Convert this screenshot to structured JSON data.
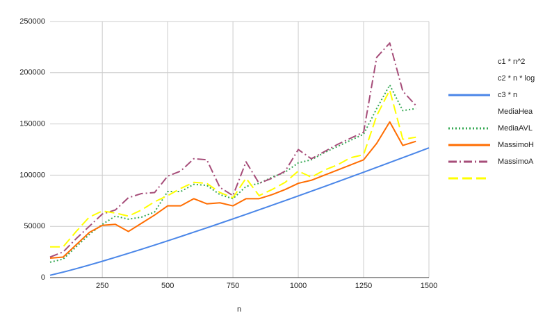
{
  "chart_data": {
    "type": "line",
    "x_label": "n",
    "x": [
      50,
      100,
      150,
      200,
      250,
      300,
      350,
      400,
      450,
      500,
      550,
      600,
      650,
      700,
      750,
      800,
      850,
      900,
      950,
      1000,
      1050,
      1100,
      1150,
      1200,
      1250,
      1300,
      1350,
      1400,
      1450,
      1500
    ],
    "xlim": [
      50,
      1500
    ],
    "xticks": [
      250,
      500,
      750,
      1000,
      1250,
      1500
    ],
    "ylim": [
      0,
      250000
    ],
    "yticks": [
      0,
      50000,
      100000,
      150000,
      200000,
      250000
    ],
    "grid": true,
    "legend": "right",
    "series": [
      {
        "name": "c1 * n^2",
        "color": "#ffffff",
        "dash": "solid",
        "values": [
          null,
          null,
          null,
          null,
          null,
          null,
          null,
          null,
          null,
          null,
          null,
          null,
          null,
          null,
          null,
          null,
          null,
          null,
          null,
          null,
          null,
          null,
          null,
          null,
          null,
          null,
          null,
          null,
          null,
          null
        ]
      },
      {
        "name": "c2 * n * log",
        "color": "#4a86e8",
        "dash": "solid",
        "values": [
          2257,
          5315,
          8675,
          12230,
          15932,
          19750,
          23663,
          27661,
          31730,
          35863,
          40055,
          44300,
          48590,
          52927,
          57305,
          61723,
          66173,
          70660,
          75180,
          79726,
          84302,
          88906,
          93536,
          98198,
          102880,
          107578,
          112309,
          117051,
          121823,
          126612
        ]
      },
      {
        "name": "c3 * n",
        "color": "#ffffff",
        "dash": "solid",
        "values": [
          null,
          null,
          null,
          null,
          null,
          null,
          null,
          null,
          null,
          null,
          null,
          null,
          null,
          null,
          null,
          null,
          null,
          null,
          null,
          null,
          null,
          null,
          null,
          null,
          null,
          null,
          null,
          null,
          null,
          null
        ]
      },
      {
        "name": "MediaHea",
        "color": "#34a853",
        "dash": "dotted",
        "values": [
          15000,
          18000,
          30000,
          42000,
          52000,
          60000,
          57000,
          59000,
          64000,
          84000,
          84000,
          91000,
          90000,
          81000,
          77000,
          89000,
          92000,
          98000,
          103000,
          112000,
          115000,
          122000,
          128000,
          134000,
          140000,
          165000,
          188000,
          163000,
          165000,
          null
        ]
      },
      {
        "name": "MediaAVL",
        "color": "#ff6d01",
        "dash": "solid",
        "values": [
          19000,
          20000,
          32000,
          44000,
          51000,
          52000,
          45000,
          53000,
          61000,
          70000,
          70000,
          77000,
          72000,
          73000,
          70000,
          77000,
          77000,
          81000,
          86000,
          92000,
          95000,
          100000,
          105000,
          110000,
          115000,
          131000,
          152000,
          129000,
          133000,
          null
        ]
      },
      {
        "name": "MassimoH",
        "color": "#a64d79",
        "dash": "dashdot",
        "values": [
          20000,
          25000,
          38000,
          50000,
          62000,
          66000,
          78000,
          82000,
          83000,
          99000,
          104000,
          116000,
          115000,
          88000,
          80000,
          113000,
          92000,
          97000,
          104000,
          125000,
          116000,
          123000,
          130000,
          136000,
          142000,
          215000,
          229000,
          182000,
          168000,
          null
        ]
      },
      {
        "name": "MassimoA",
        "color": "#ffff00",
        "dash": "dashed",
        "values": [
          30000,
          30000,
          45000,
          59000,
          65000,
          63000,
          60000,
          66000,
          74000,
          80000,
          87000,
          93000,
          92000,
          83000,
          78000,
          97000,
          80000,
          86000,
          93000,
          104000,
          98000,
          105000,
          110000,
          117000,
          120000,
          158000,
          183000,
          135000,
          137000,
          null
        ]
      }
    ]
  }
}
